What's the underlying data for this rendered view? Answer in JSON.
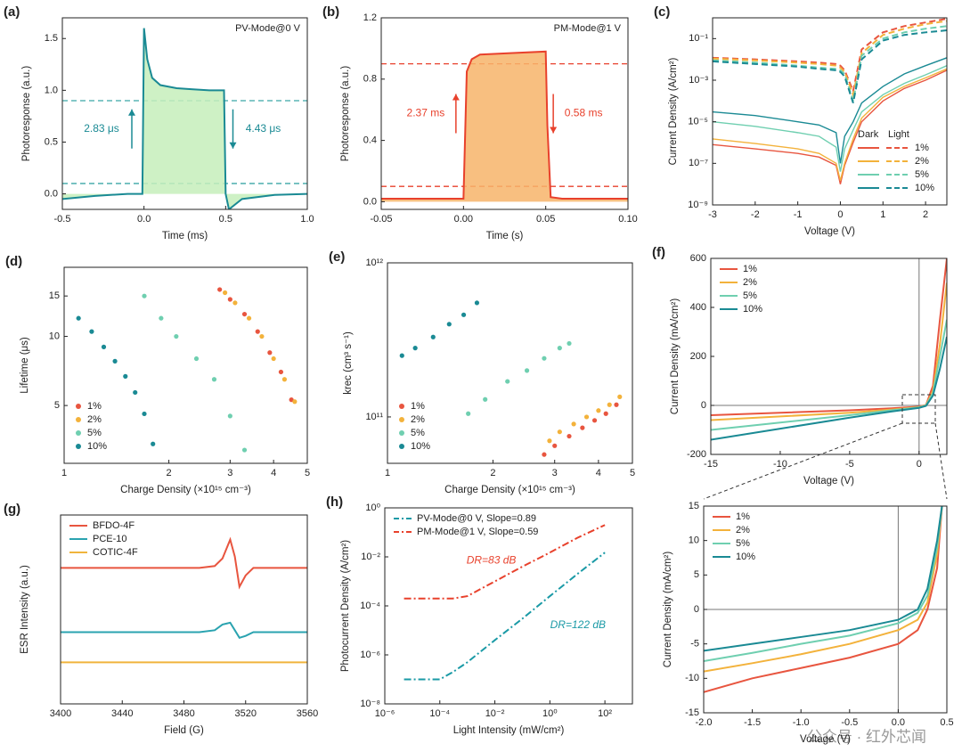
{
  "chart_data": [
    {
      "type": "line",
      "label": "(a)",
      "title": "PV-Mode@0 V",
      "xlabel": "Time (ms)",
      "ylabel": "Photoresponse (a.u.)",
      "xlim": [
        -0.5,
        1.0
      ],
      "xticks": [
        -0.5,
        {
          "value": 0,
          "label": "0.0"
        },
        0.5,
        {
          "value": 1,
          "label": "1.0"
        }
      ],
      "ylim": [
        -0.15,
        1.7
      ],
      "yticks": [
        {
          "value": 0,
          "label": "0.0"
        },
        0.5,
        {
          "value": 1,
          "label": "1.0"
        },
        1.5
      ],
      "reference_lines": [
        0.1,
        0.9
      ],
      "reference_color": "#3aa6a6",
      "area_color": "#c6eebb",
      "annotations": [
        "2.83 μs",
        "4.43 μs"
      ],
      "x": [
        -0.5,
        -0.3,
        -0.1,
        -0.01,
        0,
        0.02,
        0.05,
        0.1,
        0.2,
        0.3,
        0.4,
        0.49,
        0.5,
        0.52,
        0.6,
        0.8,
        1.0
      ],
      "series": [
        {
          "color": "#1a8a94",
          "values": [
            -0.05,
            -0.02,
            0,
            0,
            1.6,
            1.3,
            1.12,
            1.05,
            1.02,
            1.01,
            1.0,
            1.0,
            0,
            -0.15,
            -0.05,
            -0.01,
            0
          ]
        }
      ]
    },
    {
      "type": "line",
      "label": "(b)",
      "title": "PM-Mode@1 V",
      "xlabel": "Time (s)",
      "ylabel": "Photoresponse (a.u.)",
      "xlim": [
        -0.05,
        0.1
      ],
      "xticks": [
        -0.05,
        {
          "value": 0,
          "label": "0.00"
        },
        0.05,
        {
          "value": 0.1,
          "label": "0.10"
        }
      ],
      "ylim": [
        -0.05,
        1.2
      ],
      "yticks": [
        {
          "value": 0,
          "label": "0.0"
        },
        0.4,
        0.8,
        1.2
      ],
      "reference_lines": [
        0.1,
        0.9
      ],
      "reference_color": "#e8412c",
      "area_color": "#f7b46a",
      "annotations": [
        "2.37 ms",
        "0.58 ms"
      ],
      "x": [
        -0.05,
        -0.02,
        -0.001,
        0,
        0.002,
        0.005,
        0.01,
        0.03,
        0.05,
        0.051,
        0.053,
        0.06,
        0.08,
        0.1
      ],
      "series": [
        {
          "color": "#e8412c",
          "values": [
            0.02,
            0.02,
            0.02,
            0.02,
            0.85,
            0.93,
            0.96,
            0.97,
            0.98,
            0.5,
            0.03,
            0.02,
            0.02,
            0.02
          ]
        }
      ]
    },
    {
      "type": "line",
      "label": "(c)",
      "xlabel": "Voltage (V)",
      "ylabel": "Current Density (A/cm²)",
      "ylog": true,
      "xlim": [
        -3,
        2.5
      ],
      "xticks": [
        -3,
        -2,
        -1,
        0,
        1,
        2
      ],
      "ylim": [
        1e-09,
        1
      ],
      "yticks": [
        {
          "value": 1e-09,
          "label": "10⁻⁹"
        },
        {
          "value": 1e-07,
          "label": "10⁻⁷"
        },
        {
          "value": 1e-05,
          "label": "10⁻⁵"
        },
        {
          "value": 0.001,
          "label": "10⁻³"
        },
        {
          "value": 0.1,
          "label": "10⁻¹"
        }
      ],
      "legend": "lower right",
      "legend_header": [
        "Dark",
        "Light"
      ],
      "x": [
        -3,
        -2,
        -1,
        -0.5,
        -0.1,
        0,
        0.1,
        0.3,
        0.5,
        1,
        1.5,
        2,
        2.5
      ],
      "series": [
        {
          "name": "1%",
          "color": "#e8553f",
          "values": [
            8e-07,
            5e-07,
            3e-07,
            2e-07,
            8e-08,
            1e-08,
            8e-08,
            1e-06,
            1e-05,
            0.0001,
            0.0004,
            0.001,
            0.003
          ],
          "light_values": [
            0.012,
            0.01,
            0.008,
            0.007,
            0.006,
            0.005,
            0.003,
            0.0003,
            0.03,
            0.2,
            0.4,
            0.6,
            0.9
          ]
        },
        {
          "name": "2%",
          "color": "#f3b23b",
          "values": [
            1.5e-06,
            9e-07,
            5e-07,
            3e-07,
            1e-07,
            1.5e-08,
            1e-07,
            1.5e-06,
            1.5e-05,
            0.00015,
            0.0005,
            0.0013,
            0.0035
          ],
          "light_values": [
            0.011,
            0.009,
            0.007,
            0.006,
            0.005,
            0.004,
            0.0025,
            0.0002,
            0.02,
            0.15,
            0.3,
            0.5,
            0.7
          ]
        },
        {
          "name": "5%",
          "color": "#6fcfb0",
          "values": [
            1e-05,
            6e-06,
            3e-06,
            2e-06,
            6e-07,
            4e-08,
            5e-07,
            4e-06,
            3e-05,
            0.0002,
            0.0007,
            0.0018,
            0.005
          ],
          "light_values": [
            0.009,
            0.007,
            0.005,
            0.004,
            0.0035,
            0.003,
            0.002,
            0.0001,
            0.015,
            0.1,
            0.2,
            0.3,
            0.4
          ]
        },
        {
          "name": "10%",
          "color": "#1a8a94",
          "values": [
            3e-05,
            2e-05,
            1e-05,
            7e-06,
            3e-06,
            1e-07,
            2e-06,
            1e-05,
            8e-05,
            0.0005,
            0.002,
            0.005,
            0.012
          ],
          "light_values": [
            0.008,
            0.006,
            0.0045,
            0.0035,
            0.003,
            0.0025,
            0.0015,
            8e-05,
            0.01,
            0.08,
            0.15,
            0.2,
            0.25
          ]
        }
      ]
    },
    {
      "type": "scatter",
      "label": "(d)",
      "xlabel": "Charge Density (×10¹⁵ cm⁻³)",
      "ylabel": "Lifetime (μs)",
      "xlog": true,
      "ylog": true,
      "xlim": [
        1,
        5
      ],
      "xticks": [
        1,
        2,
        3,
        4,
        5
      ],
      "ylim": [
        2.8,
        20
      ],
      "yticks": [
        5,
        10,
        15
      ],
      "legend": "lower left",
      "series": [
        {
          "name": "1%",
          "color": "#e8553f",
          "x": [
            2.8,
            3.0,
            3.3,
            3.6,
            3.9,
            4.2,
            4.5
          ],
          "values": [
            16,
            14.5,
            12.5,
            10.5,
            8.5,
            7,
            5.3
          ]
        },
        {
          "name": "2%",
          "color": "#f3b23b",
          "x": [
            2.9,
            3.1,
            3.4,
            3.7,
            4.0,
            4.3,
            4.6
          ],
          "values": [
            15.5,
            14,
            12,
            10,
            8,
            6.5,
            5.2
          ]
        },
        {
          "name": "5%",
          "color": "#6fcfb0",
          "x": [
            1.7,
            1.9,
            2.1,
            2.4,
            2.7,
            3.0,
            3.3
          ],
          "values": [
            15,
            12,
            10,
            8,
            6.5,
            4.5,
            3.2
          ]
        },
        {
          "name": "10%",
          "color": "#1a8a94",
          "x": [
            1.1,
            1.2,
            1.3,
            1.4,
            1.5,
            1.6,
            1.7,
            1.8
          ],
          "values": [
            12,
            10.5,
            9,
            7.8,
            6.7,
            5.7,
            4.6,
            3.4
          ]
        }
      ]
    },
    {
      "type": "scatter",
      "label": "(e)",
      "xlabel": "Charge Density (×10¹⁵ cm⁻³)",
      "ylabel": "krec (cm³ s⁻¹)",
      "xlog": true,
      "ylog": true,
      "xlim": [
        1,
        5
      ],
      "xticks": [
        1,
        2,
        3,
        4,
        5
      ],
      "ylim": [
        50000000000,
        1000000000000
      ],
      "yticks": [
        {
          "value": 100000000000,
          "label": "10¹¹"
        },
        {
          "value": 1000000000000,
          "label": "10¹²"
        }
      ],
      "legend": "lower left",
      "series": [
        {
          "name": "1%",
          "color": "#e8553f",
          "x": [
            2.8,
            3.0,
            3.3,
            3.6,
            3.9,
            4.2,
            4.5
          ],
          "values": [
            57000000000,
            65000000000,
            75000000000,
            85000000000,
            95000000000,
            105000000000,
            120000000000
          ]
        },
        {
          "name": "2%",
          "color": "#f3b23b",
          "x": [
            2.9,
            3.1,
            3.4,
            3.7,
            4.0,
            4.3,
            4.6
          ],
          "values": [
            70000000000,
            80000000000,
            90000000000,
            100000000000,
            110000000000,
            120000000000,
            135000000000
          ]
        },
        {
          "name": "5%",
          "color": "#6fcfb0",
          "x": [
            1.7,
            1.9,
            2.2,
            2.5,
            2.8,
            3.1,
            3.3
          ],
          "values": [
            105000000000,
            130000000000,
            170000000000,
            200000000000,
            240000000000,
            280000000000,
            300000000000
          ]
        },
        {
          "name": "10%",
          "color": "#1a8a94",
          "x": [
            1.1,
            1.2,
            1.35,
            1.5,
            1.65,
            1.8
          ],
          "values": [
            250000000000,
            280000000000,
            330000000000,
            400000000000,
            460000000000,
            550000000000
          ]
        }
      ]
    },
    {
      "type": "line",
      "label": "(f)",
      "xlabel": "Voltage (V)",
      "ylabel": "Current Density (mA/cm²)",
      "xlim": [
        -15,
        2
      ],
      "xticks": [
        -15,
        -10,
        -5,
        0
      ],
      "ylim": [
        -200,
        600
      ],
      "yticks": [
        -200,
        0,
        200,
        400,
        600
      ],
      "legend": "upper left",
      "x": [
        -15,
        -10,
        -5,
        -2,
        0,
        0.5,
        1,
        1.5,
        2
      ],
      "series": [
        {
          "name": "1%",
          "color": "#e8553f",
          "values": [
            -40,
            -30,
            -20,
            -12,
            -5,
            2,
            80,
            350,
            600
          ]
        },
        {
          "name": "2%",
          "color": "#f3b23b",
          "values": [
            -60,
            -45,
            -30,
            -17,
            -7,
            1,
            60,
            250,
            500
          ]
        },
        {
          "name": "5%",
          "color": "#6fcfb0",
          "values": [
            -100,
            -70,
            -40,
            -20,
            -8,
            0,
            50,
            200,
            350
          ]
        },
        {
          "name": "10%",
          "color": "#1a8a94",
          "values": [
            -140,
            -95,
            -50,
            -25,
            -10,
            -2,
            40,
            150,
            280
          ]
        }
      ]
    },
    {
      "type": "line",
      "label": "(g)",
      "xlabel": "Field (G)",
      "ylabel": "ESR Intensity (a.u.)",
      "xlim": [
        3400,
        3560
      ],
      "xticks": [
        3400,
        3440,
        3480,
        3520,
        3560
      ],
      "ylim": [
        0,
        1
      ],
      "yticks": [],
      "legend": "upper left",
      "x": [
        3400,
        3490,
        3500,
        3505,
        3510,
        3513,
        3516,
        3520,
        3525,
        3540,
        3560
      ],
      "series": [
        {
          "name": "BFDO-4F",
          "color": "#e8553f",
          "values": [
            0.72,
            0.72,
            0.73,
            0.77,
            0.87,
            0.78,
            0.62,
            0.68,
            0.72,
            0.72,
            0.72
          ]
        },
        {
          "name": "PCE-10",
          "color": "#2aa3b0",
          "values": [
            0.38,
            0.38,
            0.39,
            0.42,
            0.43,
            0.39,
            0.35,
            0.36,
            0.38,
            0.38,
            0.38
          ]
        },
        {
          "name": "COTIC-4F",
          "color": "#f0b43c",
          "values": [
            0.22,
            0.22,
            0.22,
            0.22,
            0.22,
            0.22,
            0.22,
            0.22,
            0.22,
            0.22,
            0.22
          ]
        }
      ]
    },
    {
      "type": "line",
      "label": "(h)",
      "xlabel": "Light Intensity (mW/cm²)",
      "ylabel": "Photocurrent Density (A/cm²)",
      "xlog": true,
      "ylog": true,
      "xlim": [
        1e-06,
        1000
      ],
      "xticks": [
        {
          "value": 1e-06,
          "label": "10⁻⁶"
        },
        {
          "value": 0.0001,
          "label": "10⁻⁴"
        },
        {
          "value": 0.01,
          "label": "10⁻²"
        },
        {
          "value": 1,
          "label": "10⁰"
        },
        {
          "value": 100,
          "label": "10²"
        }
      ],
      "ylim": [
        1e-08,
        1
      ],
      "yticks": [
        {
          "value": 1e-08,
          "label": "10⁻⁸"
        },
        {
          "value": 1e-06,
          "label": "10⁻⁶"
        },
        {
          "value": 0.0001,
          "label": "10⁻⁴"
        },
        {
          "value": 0.01,
          "label": "10⁻²"
        },
        {
          "value": 1,
          "label": "10⁰"
        }
      ],
      "legend": "upper left",
      "annotations": [
        "DR=83 dB",
        "DR=122 dB"
      ],
      "x": [
        5e-06,
        1e-05,
        3e-05,
        0.0001,
        0.0003,
        0.001,
        0.01,
        0.1,
        1,
        10,
        100
      ],
      "series": [
        {
          "name": "PV-Mode@0 V, Slope=0.89",
          "color": "#1a9aa6",
          "dash": true,
          "values": [
            1e-07,
            1e-07,
            1e-07,
            1e-07,
            2e-07,
            5e-07,
            4e-06,
            3e-05,
            0.00025,
            0.002,
            0.015
          ]
        },
        {
          "name": "PM-Mode@1 V, Slope=0.59",
          "color": "#e8412c",
          "dash": true,
          "values": [
            0.0002,
            0.0002,
            0.0002,
            0.0002,
            0.0002,
            0.00025,
            0.001,
            0.004,
            0.015,
            0.06,
            0.2
          ]
        }
      ]
    },
    {
      "type": "line",
      "xlabel": "Voltage (V)",
      "ylabel": "Current Density (mA/cm²)",
      "xlim": [
        -2,
        0.5
      ],
      "xticks": [
        {
          "value": -2,
          "label": "-2.0"
        },
        -1.5,
        {
          "value": -1,
          "label": "-1.0"
        },
        -0.5,
        {
          "value": 0,
          "label": "0.0"
        },
        0.5
      ],
      "ylim": [
        -15,
        15
      ],
      "yticks": [
        -15,
        -10,
        -5,
        0,
        5,
        10,
        15
      ],
      "legend": "upper left",
      "x": [
        -2,
        -1.5,
        -1,
        -0.5,
        0,
        0.2,
        0.3,
        0.4,
        0.45
      ],
      "series": [
        {
          "name": "1%",
          "color": "#e8553f",
          "values": [
            -12,
            -10,
            -8.5,
            -7,
            -5,
            -3,
            0,
            6,
            15
          ]
        },
        {
          "name": "2%",
          "color": "#f3b23b",
          "values": [
            -9,
            -7.8,
            -6.5,
            -5,
            -3,
            -1.5,
            1,
            8,
            15
          ]
        },
        {
          "name": "5%",
          "color": "#6fcfb0",
          "values": [
            -7.5,
            -6.3,
            -5,
            -3.8,
            -2,
            -0.5,
            2,
            9,
            15
          ]
        },
        {
          "name": "10%",
          "color": "#1a8a94",
          "values": [
            -6,
            -5,
            -4,
            -3,
            -1.5,
            0,
            3,
            10,
            15
          ]
        }
      ]
    }
  ],
  "watermark": "公众号 · 红外芯闻"
}
